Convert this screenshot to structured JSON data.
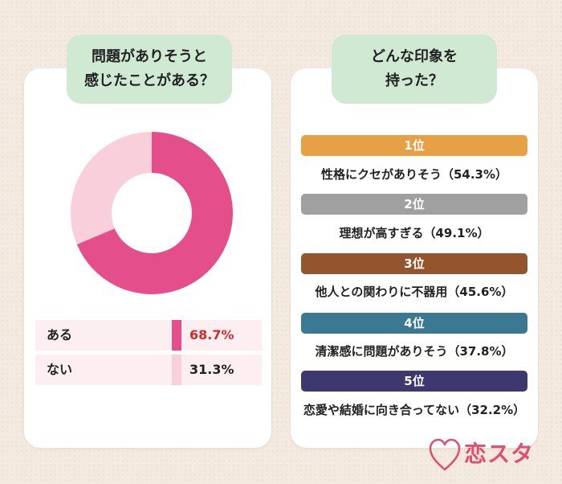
{
  "left_panel": {
    "question": "問題がありそうと\n感じたことがある？",
    "legend": [
      {
        "label": "ある",
        "value": "68.7%",
        "color": "#e44f8b",
        "value_color": "#d62b2b"
      },
      {
        "label": "ない",
        "value": "31.3%",
        "color": "#f8cfdb",
        "value_color": "#222222"
      }
    ]
  },
  "right_panel": {
    "question": "どんな印象を\n持った？",
    "ranks": [
      {
        "rank": "1位",
        "text": "性格にクセがありそう（54.3%）",
        "color": "#e6a147"
      },
      {
        "rank": "2位",
        "text": "理想が高すぎる（49.1%）",
        "color": "#a0a0a0"
      },
      {
        "rank": "3位",
        "text": "他人との関わりに不器用（45.6%）",
        "color": "#94552e"
      },
      {
        "rank": "4位",
        "text": "清潔感に問題がありそう（37.8%）",
        "color": "#3b7892"
      },
      {
        "rank": "5位",
        "text": "恋愛や結婚に向き合ってない（32.2%）",
        "color": "#3d3870"
      }
    ]
  },
  "logo": {
    "text": "恋スタ",
    "color": "#e0506e",
    "icon": "heart-icon"
  },
  "chart_data": {
    "type": "pie",
    "categories": [
      "ある",
      "ない"
    ],
    "values": [
      68.7,
      31.3
    ],
    "colors": [
      "#e44f8b",
      "#f8cfdb"
    ],
    "title": "問題がありそうと感じたことがある？"
  }
}
